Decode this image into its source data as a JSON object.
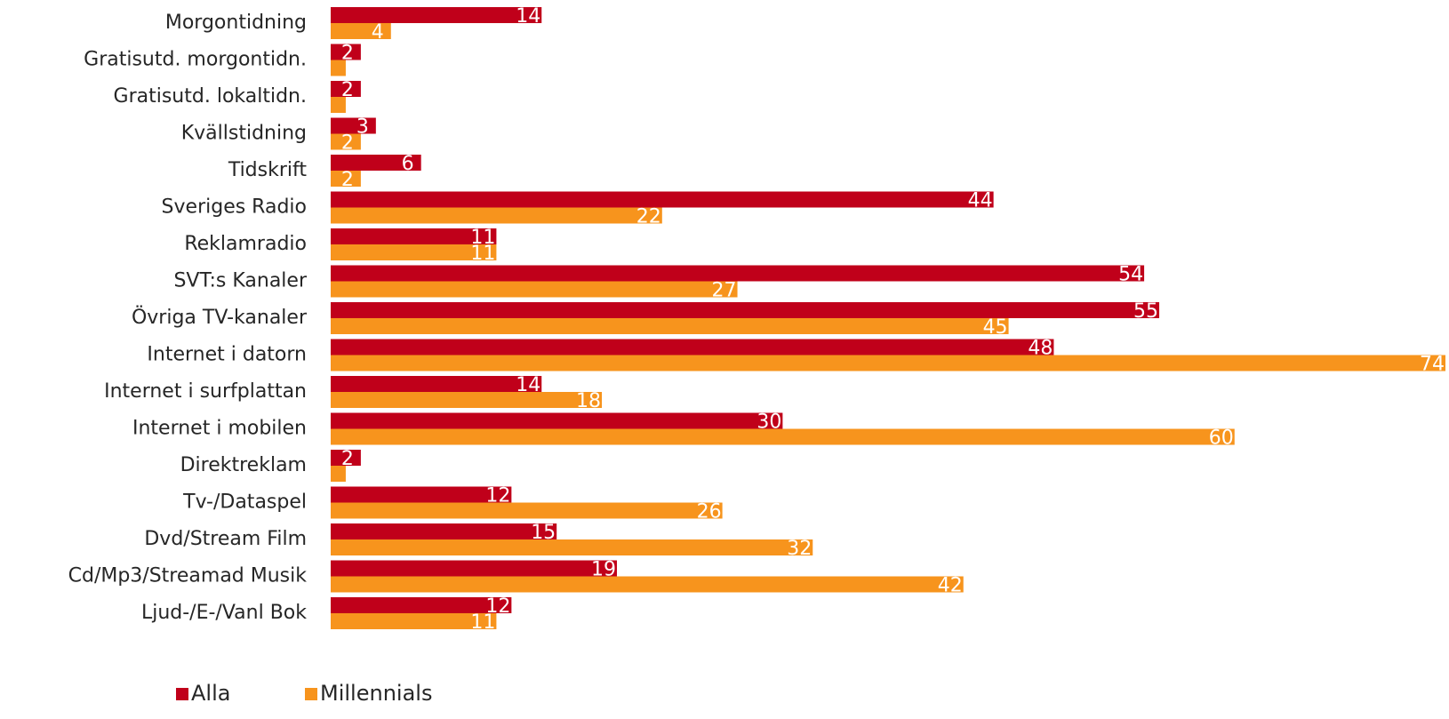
{
  "chart_data": {
    "type": "bar",
    "orientation": "horizontal",
    "categories": [
      "Morgontidning",
      "Gratisutd. morgontidn.",
      "Gratisutd. lokaltidn.",
      "Kvällstidning",
      "Tidskrift",
      "Sveriges Radio",
      "Reklamradio",
      "SVT:s Kanaler",
      "Övriga TV-kanaler",
      "Internet i datorn",
      "Internet i surfplattan",
      "Internet i mobilen",
      "Direktreklam",
      "Tv-/Dataspel",
      "Dvd/Stream Film",
      "Cd/Mp3/Streamad Musik",
      "Ljud-/E-/Vanl Bok"
    ],
    "series": [
      {
        "name": "Alla",
        "color": "#c0001a",
        "values": [
          14,
          2,
          2,
          3,
          6,
          44,
          11,
          54,
          55,
          48,
          14,
          30,
          2,
          12,
          15,
          19,
          12
        ],
        "labels": [
          "14",
          "2",
          "2",
          "3",
          "6",
          "44",
          "11",
          "54",
          "55",
          "48",
          "14",
          "30",
          "2",
          "12",
          "15",
          "19",
          "12"
        ]
      },
      {
        "name": "Millennials",
        "color": "#f7941d",
        "values": [
          4,
          1,
          1,
          2,
          2,
          22,
          11,
          27,
          45,
          74,
          18,
          60,
          1,
          26,
          32,
          42,
          11
        ],
        "labels": [
          "4",
          "",
          "",
          "2",
          "2",
          "22",
          "11",
          "27",
          "45",
          "74",
          "18",
          "60",
          "",
          "26",
          "32",
          "42",
          "11"
        ]
      }
    ],
    "xlim": [
      0,
      74
    ],
    "grid": false,
    "legend": "bottom-left"
  }
}
